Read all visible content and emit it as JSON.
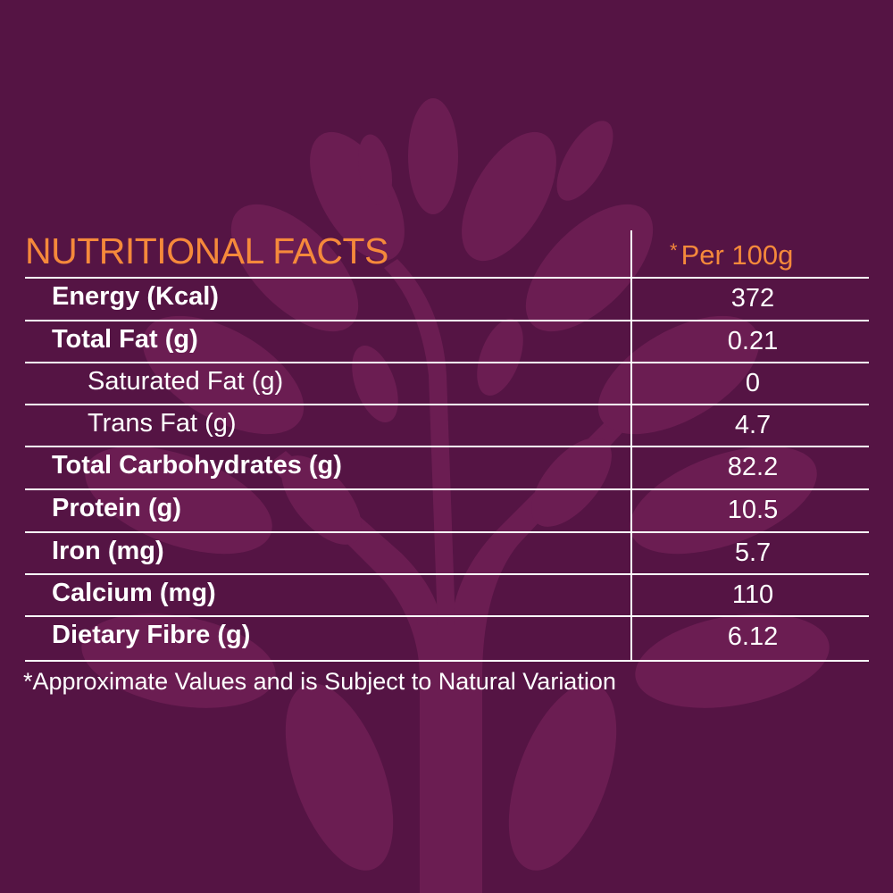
{
  "title": "NUTRITIONAL FACTS",
  "per_label": "Per 100g",
  "per_star": "*",
  "rows": [
    {
      "label": "Energy (Kcal)",
      "value": "372"
    },
    {
      "label": "Total Fat (g)",
      "value": "0.21"
    },
    {
      "label": "Saturated Fat (g)",
      "value": "0"
    },
    {
      "label": "Trans Fat (g)",
      "value": "4.7"
    },
    {
      "label": "Total Carbohydrates (g)",
      "value": "82.2"
    },
    {
      "label": "Protein (g)",
      "value": "10.5"
    },
    {
      "label": "Iron (mg)",
      "value": "5.7"
    },
    {
      "label": "Calcium (mg)",
      "value": "110"
    },
    {
      "label": "Dietary Fibre (g)",
      "value": "6.12"
    }
  ],
  "footnote": "*Approximate Values and is Subject to Natural Variation",
  "colors": {
    "background": "#551444",
    "accent": "#f5893b",
    "watermark": "#6b1d52"
  }
}
